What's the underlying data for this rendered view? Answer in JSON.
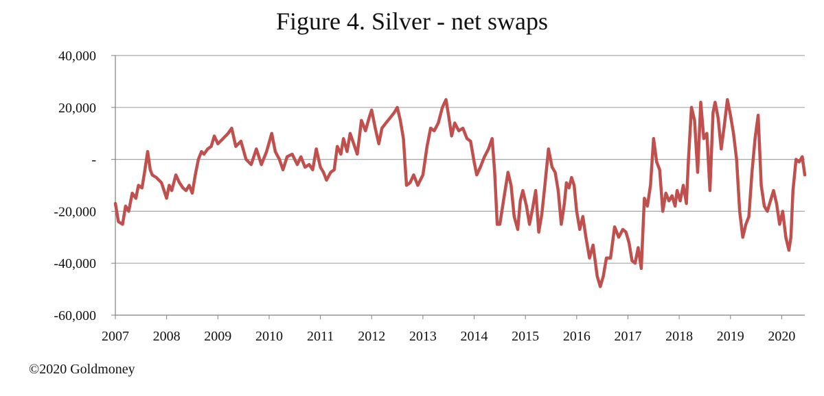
{
  "chart_data": {
    "type": "line",
    "title": "Figure 4. Silver - net swaps",
    "xlabel": "",
    "ylabel": "",
    "ylim": [
      -60000,
      40000
    ],
    "xlim": [
      2007.0,
      2020.45
    ],
    "grid": true,
    "legend": "none",
    "y_ticks": [
      {
        "value": 40000,
        "label": "40,000"
      },
      {
        "value": 20000,
        "label": "20,000"
      },
      {
        "value": 0,
        "label": "-"
      },
      {
        "value": -20000,
        "label": "-20,000"
      },
      {
        "value": -40000,
        "label": "-40,000"
      },
      {
        "value": -60000,
        "label": "-60,000"
      }
    ],
    "x_ticks": [
      {
        "value": 2007,
        "label": "2007"
      },
      {
        "value": 2008,
        "label": "2008"
      },
      {
        "value": 2009,
        "label": "2009"
      },
      {
        "value": 2010,
        "label": "2010"
      },
      {
        "value": 2011,
        "label": "2011"
      },
      {
        "value": 2012,
        "label": "2012"
      },
      {
        "value": 2013,
        "label": "2013"
      },
      {
        "value": 2014,
        "label": "2014"
      },
      {
        "value": 2015,
        "label": "2015"
      },
      {
        "value": 2016,
        "label": "2016"
      },
      {
        "value": 2017,
        "label": "2017"
      },
      {
        "value": 2018,
        "label": "2018"
      },
      {
        "value": 2019,
        "label": "2019"
      },
      {
        "value": 2020,
        "label": "2020"
      }
    ],
    "series": [
      {
        "color": "#c0504d",
        "x": [
          2007.0,
          2007.06,
          2007.14,
          2007.2,
          2007.26,
          2007.33,
          2007.4,
          2007.45,
          2007.52,
          2007.57,
          2007.63,
          2007.68,
          2007.72,
          2007.8,
          2007.9,
          2008.0,
          2008.05,
          2008.1,
          2008.18,
          2008.25,
          2008.32,
          2008.38,
          2008.44,
          2008.5,
          2008.56,
          2008.62,
          2008.68,
          2008.73,
          2008.8,
          2008.87,
          2008.93,
          2009.0,
          2009.1,
          2009.2,
          2009.27,
          2009.35,
          2009.45,
          2009.55,
          2009.65,
          2009.75,
          2009.85,
          2009.95,
          2010.05,
          2010.12,
          2010.2,
          2010.27,
          2010.35,
          2010.45,
          2010.55,
          2010.62,
          2010.7,
          2010.78,
          2010.85,
          2010.92,
          2011.0,
          2011.06,
          2011.12,
          2011.2,
          2011.27,
          2011.33,
          2011.4,
          2011.45,
          2011.52,
          2011.58,
          2011.65,
          2011.72,
          2011.8,
          2011.88,
          2011.95,
          2012.0,
          2012.07,
          2012.14,
          2012.2,
          2012.28,
          2012.36,
          2012.44,
          2012.5,
          2012.56,
          2012.62,
          2012.68,
          2012.75,
          2012.82,
          2012.9,
          2013.0,
          2013.08,
          2013.15,
          2013.22,
          2013.3,
          2013.38,
          2013.45,
          2013.5,
          2013.56,
          2013.62,
          2013.7,
          2013.78,
          2013.86,
          2013.93,
          2014.0,
          2014.05,
          2014.12,
          2014.2,
          2014.28,
          2014.35,
          2014.4,
          2014.45,
          2014.5,
          2014.58,
          2014.66,
          2014.72,
          2014.78,
          2014.85,
          2014.9,
          2014.95,
          2015.02,
          2015.08,
          2015.14,
          2015.2,
          2015.26,
          2015.32,
          2015.38,
          2015.45,
          2015.52,
          2015.58,
          2015.64,
          2015.7,
          2015.76,
          2015.8,
          2015.85,
          2015.9,
          2015.95,
          2016.0,
          2016.06,
          2016.12,
          2016.18,
          2016.25,
          2016.32,
          2016.4,
          2016.46,
          2016.52,
          2016.58,
          2016.66,
          2016.74,
          2016.82,
          2016.9,
          2016.96,
          2017.02,
          2017.08,
          2017.14,
          2017.2,
          2017.26,
          2017.32,
          2017.38,
          2017.44,
          2017.5,
          2017.56,
          2017.62,
          2017.68,
          2017.74,
          2017.8,
          2017.86,
          2017.92,
          2017.96,
          2018.02,
          2018.08,
          2018.14,
          2018.18,
          2018.24,
          2018.3,
          2018.36,
          2018.42,
          2018.48,
          2018.54,
          2018.6,
          2018.66,
          2018.7,
          2018.76,
          2018.82,
          2018.88,
          2018.94,
          2019.0,
          2019.06,
          2019.12,
          2019.18,
          2019.24,
          2019.3,
          2019.36,
          2019.42,
          2019.48,
          2019.54,
          2019.6,
          2019.66,
          2019.72,
          2019.78,
          2019.84,
          2019.9,
          2019.96,
          2020.02,
          2020.08,
          2020.14,
          2020.18,
          2020.22,
          2020.28,
          2020.34,
          2020.4,
          2020.45
        ],
        "y": [
          -17000,
          -24000,
          -25000,
          -18000,
          -20000,
          -13000,
          -15000,
          -10000,
          -11000,
          -5000,
          3000,
          -4000,
          -6000,
          -7000,
          -9000,
          -15000,
          -10000,
          -12000,
          -6000,
          -9000,
          -11000,
          -12000,
          -10000,
          -13000,
          -6000,
          0,
          3000,
          2000,
          4000,
          5000,
          9000,
          6000,
          8000,
          10000,
          12000,
          5000,
          7000,
          0,
          -2000,
          4000,
          -2000,
          3000,
          10000,
          3000,
          0,
          -4000,
          1000,
          2000,
          -2000,
          1000,
          -3000,
          -2000,
          -4000,
          4000,
          -3000,
          -5000,
          -8000,
          -5000,
          -4000,
          5000,
          2000,
          8000,
          3000,
          10000,
          6000,
          2000,
          15000,
          11000,
          16000,
          19000,
          12000,
          6000,
          12000,
          14000,
          16000,
          18000,
          20000,
          15000,
          8000,
          -10000,
          -9000,
          -6000,
          -10000,
          -6000,
          5000,
          12000,
          11000,
          14000,
          20000,
          23000,
          17000,
          9000,
          14000,
          11000,
          12000,
          8000,
          7000,
          -1000,
          -6000,
          -3000,
          1000,
          4000,
          8000,
          -5000,
          -25000,
          -25000,
          -15000,
          -5000,
          -10000,
          -22000,
          -27000,
          -16000,
          -12000,
          -18000,
          -25000,
          -19000,
          -12000,
          -28000,
          -21000,
          -10000,
          4000,
          -3000,
          -5000,
          -12000,
          -25000,
          -17000,
          -9000,
          -11000,
          -7000,
          -10000,
          -20000,
          -27000,
          -22000,
          -30000,
          -38000,
          -33000,
          -45000,
          -49000,
          -45000,
          -38000,
          -38000,
          -26000,
          -30000,
          -27000,
          -28000,
          -32000,
          -39000,
          -40000,
          -34000,
          -42000,
          -15000,
          -18000,
          -10000,
          8000,
          -1000,
          -4000,
          -20000,
          -13000,
          -16000,
          -14000,
          -18000,
          -12000,
          -16000,
          -10000,
          -17000,
          0,
          20000,
          15000,
          -5000,
          22000,
          8000,
          10000,
          -12000,
          18000,
          22000,
          16000,
          4000,
          13000,
          23000,
          17000,
          10000,
          0,
          -20000,
          -30000,
          -25000,
          -22000,
          -5000,
          8000,
          17000,
          -10000,
          -18000,
          -20000,
          -16000,
          -12000,
          -17000,
          -25000,
          -20000,
          -30000,
          -35000,
          -30000,
          -12000,
          0,
          -1000,
          1000,
          -6000
        ]
      }
    ]
  },
  "footer": {
    "copyright": "©2020 Goldmoney"
  }
}
